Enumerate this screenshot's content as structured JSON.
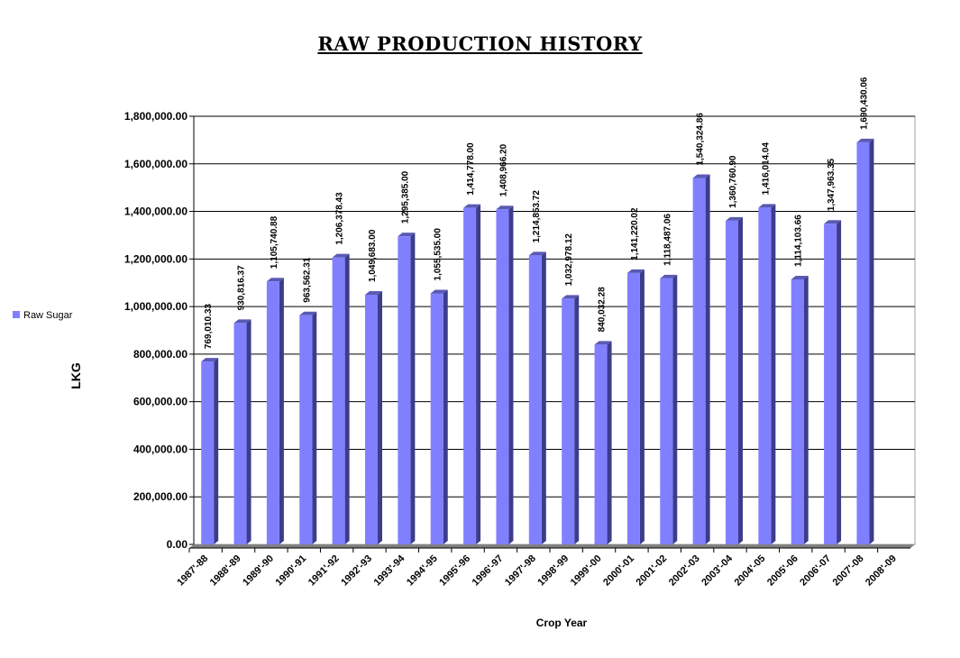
{
  "chart_data": {
    "type": "bar",
    "title": "RAW PRODUCTION HISTORY",
    "xlabel": "Crop Year",
    "ylabel": "LKG",
    "ylim": [
      0,
      1800000
    ],
    "ytick_labels": [
      "0.00",
      "200,000.00",
      "400,000.00",
      "600,000.00",
      "800,000.00",
      "1,000,000.00",
      "1,200,000.00",
      "1,400,000.00",
      "1,600,000.00",
      "1,800,000.00"
    ],
    "grid": true,
    "legend_position": "left",
    "categories": [
      "1987'-88",
      "1988'-89",
      "1989'-90",
      "1990'-91",
      "1991'-92",
      "1992'-93",
      "1993'-94",
      "1994'-95",
      "1995'-96",
      "1996'-97",
      "1997'-98",
      "1998'-99",
      "1999'-00",
      "2000'-01",
      "2001'-02",
      "2002'-03",
      "2003'-04",
      "2004'-05",
      "2005'-06",
      "2006'-07",
      "2007'-08",
      "2008'-09"
    ],
    "series": [
      {
        "name": "Raw  Sugar",
        "color": "#8080ff",
        "values": [
          769010.33,
          930816.37,
          1105740.88,
          963562.31,
          1206378.43,
          1049683.0,
          1295385.0,
          1055535.0,
          1414778.0,
          1408966.2,
          1214853.72,
          1032978.12,
          840032.28,
          1141220.02,
          1118487.06,
          1540324.86,
          1360760.9,
          1416014.04,
          1114103.66,
          1347963.35,
          1690430.06,
          null
        ],
        "value_labels": [
          "769,010.33",
          "930,816.37",
          "1,105,740.88",
          "963,562.31",
          "1,206,378.43",
          "1,049,683.00",
          "1,295,385.00",
          "1,055,535.00",
          "1,414,778.00",
          "1,408,966.20",
          "1,214,853.72",
          "1,032,978.12",
          "840,032.28",
          "1,141,220.02",
          "1,118,487.06",
          "1,540,324.86",
          "1,360,760.90",
          "1,416,014.04",
          "1,114,103.66",
          "1,347,963.35",
          "1,690,430.06",
          ""
        ]
      }
    ]
  }
}
